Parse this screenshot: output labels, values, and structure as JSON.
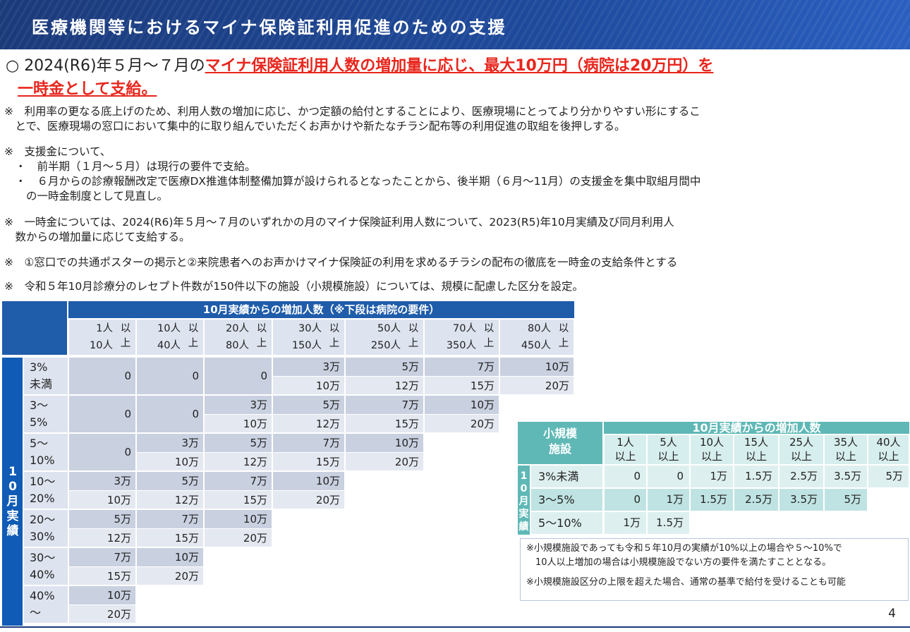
{
  "banner": {
    "title": "医療機関等におけるマイナ保険証利用促進のための支援"
  },
  "lead": {
    "prefix": "○ 2024(R6)年５月～７月の",
    "emphasis1": "マイナ保険証利用人数の増加量に応じ、最大10万円（病院は20万円）を",
    "emphasis2": "一時金として支給。"
  },
  "notes": [
    "※　利用率の更なる底上げのため、利用人数の増加に応じ、かつ定額の給付とすることにより、医療現場にとってより分かりやすい形にするこ",
    "　とで、医療現場の窓口において集中的に取り組んでいただくお声かけや新たなチラシ配布等の利用促進の取組を後押しする。",
    "※　支援金について、",
    "　・　前半期（１月～５月）は現行の要件で支給。",
    "　・　６月からの診療報酬改定で医療DX推進体制整備加算が設けられるとなったことから、後半期（６月～11月）の支援金を集中取組月間中",
    "　　の一時金制度として見直し。",
    "※　一時金については、2024(R6)年５月～７月のいずれかの月のマイナ保険証利用人数について、2023(R5)年10月実績及び同月利用人",
    "　数からの増加量に応じて支給する。",
    "※　①窓口での共通ポスターの掲示と②来院患者へのお声かけマイナ保険証の利用を求めるチラシの配布の徹底を一時金の支給条件とする",
    "※　令和５年10月診療分のレセプト件数が150件以下の施設（小規模施設）については、規模に配慮した区分を設定。"
  ],
  "main_table": {
    "header": "10月実績からの増加人数（※下段は病院の要件）",
    "row_group_label": "10月実績",
    "columns": [
      {
        "top": "1人",
        "bottom": "10人",
        "suffix": "以上"
      },
      {
        "top": "10人",
        "bottom": "40人",
        "suffix": "以上"
      },
      {
        "top": "20人",
        "bottom": "80人",
        "suffix": "以上"
      },
      {
        "top": "30人",
        "bottom": "150人",
        "suffix": "以上"
      },
      {
        "top": "50人",
        "bottom": "250人",
        "suffix": "以上"
      },
      {
        "top": "70人",
        "bottom": "350人",
        "suffix": "以上"
      },
      {
        "top": "80人",
        "bottom": "450人",
        "suffix": "以上"
      }
    ],
    "rows": [
      {
        "label1": "3%",
        "label2": "未満",
        "zeros": [
          "0",
          "0",
          "0"
        ],
        "values": [
          [
            "3万",
            "10万"
          ],
          [
            "5万",
            "12万"
          ],
          [
            "7万",
            "15万"
          ],
          [
            "10万",
            "20万"
          ]
        ]
      },
      {
        "label1": "3～",
        "label2": "5%",
        "zeros": [
          "0",
          "0"
        ],
        "values": [
          [
            "3万",
            "10万"
          ],
          [
            "5万",
            "12万"
          ],
          [
            "7万",
            "15万"
          ],
          [
            "10万",
            "20万"
          ]
        ]
      },
      {
        "label1": "5～",
        "label2": "10%",
        "zeros": [
          "0"
        ],
        "values": [
          [
            "3万",
            "10万"
          ],
          [
            "5万",
            "12万"
          ],
          [
            "7万",
            "15万"
          ],
          [
            "10万",
            "20万"
          ]
        ]
      },
      {
        "label1": "10～",
        "label2": "20%",
        "zeros": [],
        "values": [
          [
            "3万",
            "10万"
          ],
          [
            "5万",
            "12万"
          ],
          [
            "7万",
            "15万"
          ],
          [
            "10万",
            "20万"
          ]
        ]
      },
      {
        "label1": "20～",
        "label2": "30%",
        "zeros": [],
        "values": [
          [
            "5万",
            "12万"
          ],
          [
            "7万",
            "15万"
          ],
          [
            "10万",
            "20万"
          ]
        ]
      },
      {
        "label1": "30～",
        "label2": "40%",
        "zeros": [],
        "values": [
          [
            "7万",
            "15万"
          ],
          [
            "10万",
            "20万"
          ]
        ]
      },
      {
        "label1": "40%",
        "label2": "～",
        "zeros": [],
        "values": [
          [
            "10万",
            "20万"
          ]
        ]
      }
    ]
  },
  "small_table": {
    "corner": "小規模施設",
    "header": "10月実績からの増加人数",
    "row_group_label": "10月実績",
    "columns": [
      {
        "top": "1人",
        "bottom": "以上"
      },
      {
        "top": "5人",
        "bottom": "以上"
      },
      {
        "top": "10人",
        "bottom": "以上"
      },
      {
        "top": "15人",
        "bottom": "以上"
      },
      {
        "top": "25人",
        "bottom": "以上"
      },
      {
        "top": "35人",
        "bottom": "以上"
      },
      {
        "top": "40人",
        "bottom": "以上"
      }
    ],
    "rows": [
      {
        "label": "3%未満",
        "values": [
          "0",
          "0",
          "1万",
          "1.5万",
          "2.5万",
          "3.5万",
          "5万"
        ]
      },
      {
        "label": "3～5%",
        "values": [
          "0",
          "1万",
          "1.5万",
          "2.5万",
          "3.5万",
          "5万"
        ]
      },
      {
        "label": "5～10%",
        "values": [
          "1万",
          "1.5万"
        ]
      }
    ]
  },
  "footnotes": [
    "※小規模施設であっても令和５年10月の実績が10%以上の場合や５～10%で",
    "　10人以上増加の場合は小規模施設でない方の要件を満たすこととなる。",
    "※小規模施設区分の上限を超えた場合、通常の基準で給付を受けることも可能"
  ],
  "page_number": "4"
}
